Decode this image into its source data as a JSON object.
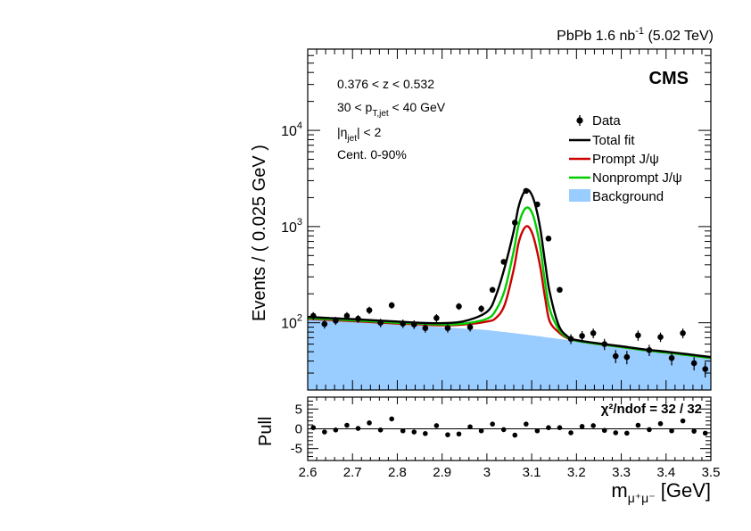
{
  "header": {
    "energy_label": "PbPb 1.6 nb",
    "energy_sup": "-1",
    "energy_tail": " (5.02 TeV)"
  },
  "cms_label": "CMS",
  "cuts": {
    "z": "0.376 < z < 0.532",
    "pt_pre": "30 < p",
    "pt_sub": "T,jet",
    "pt_post": " < 40 GeV",
    "eta_pre": "|η",
    "eta_sub": "jet",
    "eta_post": "| < 2",
    "cent": "Cent. 0-90%"
  },
  "legend": {
    "data": "Data",
    "total": "Total fit",
    "prompt": "Prompt J/ψ",
    "nonprompt": "Nonprompt J/ψ",
    "background": "Background"
  },
  "colors": {
    "total": "#000000",
    "prompt": "#cc0000",
    "nonprompt": "#00cc00",
    "background": "#99ccff"
  },
  "chart_data": [
    {
      "type": "scatter",
      "title": "",
      "ylabel": "Events / ( 0.025 GeV )",
      "yscale": "log",
      "ylim": [
        20,
        70000
      ],
      "xlim": [
        2.6,
        3.5
      ],
      "yticks": [
        {
          "value": 100,
          "base": "10",
          "exp": "2"
        },
        {
          "value": 1000,
          "base": "10",
          "exp": "3"
        },
        {
          "value": 10000,
          "base": "10",
          "exp": "4"
        }
      ],
      "data_points": {
        "x": [
          2.6125,
          2.6375,
          2.6625,
          2.6875,
          2.7125,
          2.7375,
          2.7625,
          2.7875,
          2.8125,
          2.8375,
          2.8625,
          2.8875,
          2.9125,
          2.9375,
          2.9625,
          2.9875,
          3.0125,
          3.0375,
          3.0625,
          3.0875,
          3.1125,
          3.1375,
          3.1625,
          3.1875,
          3.2125,
          3.2375,
          3.2625,
          3.2875,
          3.3125,
          3.3375,
          3.3625,
          3.3875,
          3.4125,
          3.4375,
          3.4625,
          3.4875
        ],
        "y": [
          118,
          97,
          105,
          118,
          110,
          135,
          100,
          152,
          98,
          96,
          88,
          112,
          88,
          148,
          90,
          140,
          220,
          430,
          1100,
          2350,
          1700,
          750,
          220,
          68,
          73,
          78,
          60,
          45,
          44,
          74,
          52,
          71,
          43,
          78,
          38,
          33
        ],
        "yerr": [
          11,
          10,
          10,
          11,
          10,
          12,
          10,
          12,
          10,
          10,
          9,
          11,
          9,
          12,
          9,
          12,
          15,
          21,
          33,
          48,
          41,
          27,
          15,
          8,
          9,
          9,
          8,
          7,
          7,
          9,
          7,
          8,
          7,
          9,
          6,
          6
        ]
      },
      "curve_x": [
        2.6,
        2.65,
        2.7,
        2.75,
        2.8,
        2.85,
        2.9,
        2.95,
        3.0,
        3.02,
        3.04,
        3.06,
        3.07,
        3.08,
        3.09,
        3.1,
        3.11,
        3.12,
        3.13,
        3.14,
        3.16,
        3.18,
        3.2,
        3.25,
        3.3,
        3.35,
        3.4,
        3.45,
        3.5
      ],
      "series": [
        {
          "name": "Total fit",
          "values": [
            115,
            112,
            109,
            106,
            103,
            100,
            99,
            104,
            130,
            190,
            380,
            900,
            1550,
            2150,
            2420,
            2150,
            1550,
            900,
            420,
            210,
            95,
            72,
            66,
            61,
            57,
            53,
            50,
            47,
            44
          ]
        },
        {
          "name": "Prompt J/ψ",
          "values": [
            110,
            107,
            104,
            101,
            98,
            96,
            94,
            96,
            103,
            112,
            155,
            360,
            650,
            900,
            1010,
            880,
            610,
            360,
            180,
            104,
            80,
            69,
            65,
            60,
            56,
            52,
            49,
            46,
            43
          ]
        },
        {
          "name": "Nonprompt J/ψ",
          "values": [
            112,
            109,
            106,
            103,
            100,
            98,
            96,
            98,
            110,
            135,
            220,
            560,
            1000,
            1400,
            1580,
            1420,
            1000,
            570,
            260,
            140,
            86,
            70,
            65,
            60,
            56,
            52,
            49,
            46,
            43
          ]
        },
        {
          "name": "Background",
          "values": [
            110,
            106,
            102,
            99,
            96,
            93,
            90,
            87,
            84,
            82,
            80,
            78,
            77,
            76,
            75,
            74,
            73,
            72,
            71,
            70,
            68,
            66,
            64,
            60,
            56,
            52,
            49,
            46,
            43
          ]
        }
      ]
    },
    {
      "type": "scatter",
      "title": "",
      "xlabel_main": "m",
      "xlabel_sub": "μ⁺μ⁻",
      "xlabel_unit": " [GeV]",
      "ylabel": "Pull",
      "ylim": [
        -8,
        8
      ],
      "yticks": [
        -5,
        0,
        5
      ],
      "xlim": [
        2.6,
        3.5
      ],
      "xticks": [
        2.6,
        2.7,
        2.8,
        2.9,
        3.0,
        3.1,
        3.2,
        3.3,
        3.4,
        3.5
      ],
      "xtick_labels": [
        "2.6",
        "2.7",
        "2.8",
        "2.9",
        "3",
        "3.1",
        "3.2",
        "3.3",
        "3.4",
        "3.5"
      ],
      "chi2_label": "χ²/ndof = 32 / 32",
      "x": [
        2.6125,
        2.6375,
        2.6625,
        2.6875,
        2.7125,
        2.7375,
        2.7625,
        2.7875,
        2.8125,
        2.8375,
        2.8625,
        2.8875,
        2.9125,
        2.9375,
        2.9625,
        2.9875,
        3.0125,
        3.0375,
        3.0625,
        3.0875,
        3.1125,
        3.1375,
        3.1625,
        3.1875,
        3.2125,
        3.2375,
        3.2625,
        3.2875,
        3.3125,
        3.3375,
        3.3625,
        3.3875,
        3.4125,
        3.4375,
        3.4625,
        3.4875
      ],
      "pull": [
        0.3,
        -0.8,
        -0.3,
        0.9,
        0.1,
        1.5,
        -0.3,
        2.5,
        -0.5,
        -0.8,
        -1.2,
        0.8,
        -1.5,
        -1.3,
        0.5,
        -0.5,
        1.2,
        -0.2,
        -1.6,
        1.2,
        -0.5,
        0.3,
        0.3,
        -1.0,
        0.6,
        0.8,
        -0.4,
        -1.0,
        -1.1,
        0.9,
        -0.2,
        1.3,
        -0.5,
        2.0,
        -0.6,
        -1.1
      ]
    }
  ]
}
